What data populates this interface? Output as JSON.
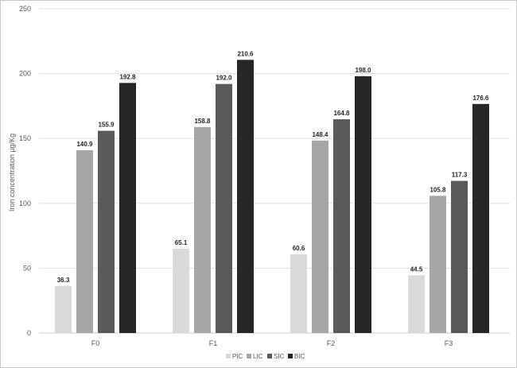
{
  "chart_data": {
    "type": "bar",
    "title": "",
    "xlabel": "",
    "ylabel": "Iron concentration µg/Kg",
    "categories": [
      "F0",
      "F1",
      "F2",
      "F3"
    ],
    "series": [
      {
        "name": "PIC",
        "color": "#d9d9d9",
        "values": [
          36.3,
          65.1,
          60.6,
          44.5
        ],
        "labels": [
          "36.3",
          "65.1",
          "60.6",
          "44.5"
        ]
      },
      {
        "name": "LIC",
        "color": "#a6a6a6",
        "values": [
          140.9,
          158.8,
          148.4,
          105.8
        ],
        "labels": [
          "140.9",
          "158.8",
          "148.4",
          "105.8"
        ]
      },
      {
        "name": "SIC",
        "color": "#595959",
        "values": [
          155.9,
          192.0,
          164.8,
          117.3
        ],
        "labels": [
          "155.9",
          "192.0",
          "164.8",
          "117.3"
        ]
      },
      {
        "name": "BIC",
        "color": "#262626",
        "values": [
          192.8,
          210.6,
          198.0,
          176.6
        ],
        "labels": [
          "192.8",
          "210.6",
          "198.0",
          "176.6"
        ]
      }
    ],
    "ylim": [
      0,
      250
    ],
    "yticks": [
      0,
      50,
      100,
      150,
      200,
      250
    ],
    "grid": true,
    "legend_position": "bottom"
  }
}
